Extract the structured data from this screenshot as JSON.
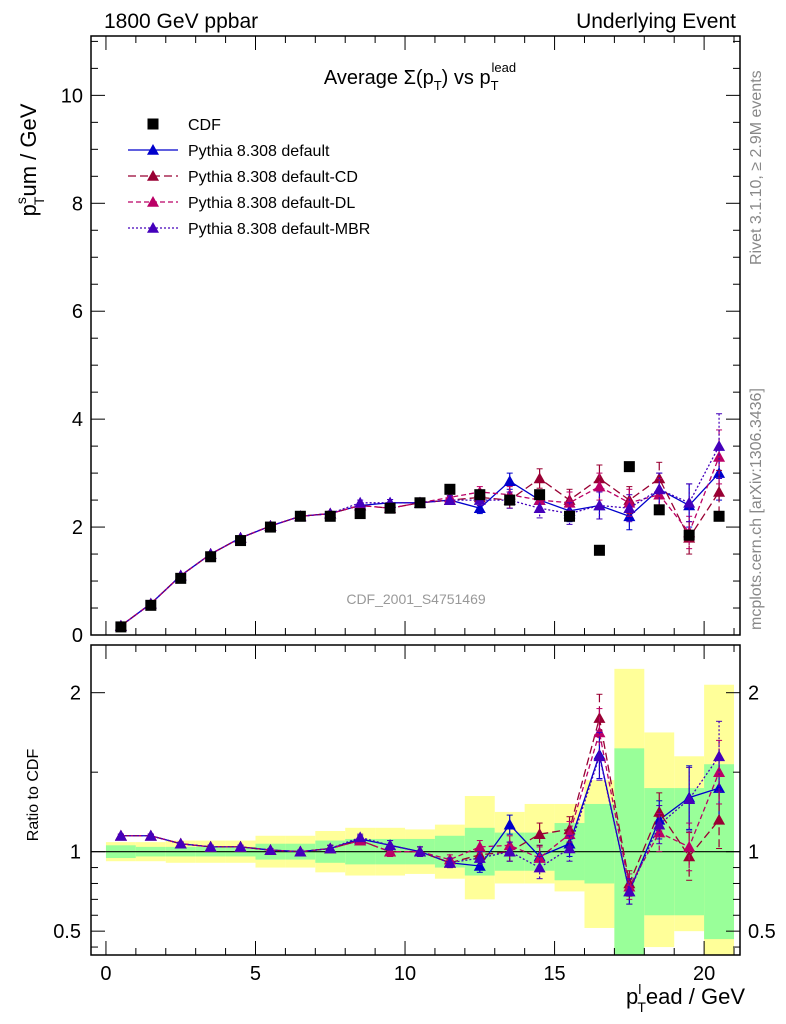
{
  "header": {
    "left": "1800 GeV ppbar",
    "right": "Underlying Event"
  },
  "side_labels": {
    "rivet": "Rivet 3.1.10, ≥ 2.9M events",
    "mcplots": "mcplots.cern.ch [arXiv:1306.3436]"
  },
  "watermark": "CDF_2001_S4751469",
  "colors": {
    "data": "#000000",
    "default": "#0000cc",
    "cd": "#990033",
    "dl": "#bb0066",
    "mbr": "#4400bb",
    "band_inner": "#99ff99",
    "band_outer": "#ffff99"
  },
  "chart_data": [
    {
      "type": "scatter",
      "title": "Average Σ(p_T) vs p_T^lead",
      "title_parts": {
        "main": "Average Σ(p",
        "sub1": "T",
        "mid": ") vs p",
        "sub2": "T",
        "sup": "lead"
      },
      "ylabel_parts": {
        "p": "p",
        "sup": "s",
        "sub": "T",
        "rest": "um / GeV"
      },
      "xlim": [
        -0.5,
        21.2
      ],
      "ylim": [
        0,
        11.1
      ],
      "yticks": [
        0,
        2,
        4,
        6,
        8,
        10
      ],
      "ytick_labels": [
        "0",
        "2",
        "4",
        "6",
        "8",
        "10"
      ],
      "x": [
        0.5,
        1.5,
        2.5,
        3.5,
        4.5,
        5.5,
        6.5,
        7.5,
        8.5,
        9.5,
        10.5,
        11.5,
        12.5,
        13.5,
        14.5,
        15.5,
        16.5,
        17.5,
        18.5,
        19.5,
        20.5
      ],
      "legend": [
        "CDF",
        "Pythia 8.308 default",
        "Pythia 8.308 default-CD",
        "Pythia 8.308 default-DL",
        "Pythia 8.308 default-MBR"
      ],
      "legend_position": "top-left",
      "series": [
        {
          "name": "CDF",
          "key": "data",
          "values": [
            0.15,
            0.55,
            1.05,
            1.45,
            1.75,
            2.0,
            2.2,
            2.2,
            2.25,
            2.35,
            2.45,
            2.7,
            2.6,
            2.5,
            2.6,
            2.2,
            1.57,
            3.12,
            2.32,
            1.85,
            2.2
          ]
        },
        {
          "name": "Pythia 8.308 default",
          "key": "default",
          "values": [
            0.17,
            0.58,
            1.1,
            1.5,
            1.8,
            2.02,
            2.2,
            2.25,
            2.4,
            2.45,
            2.45,
            2.5,
            2.35,
            2.85,
            2.5,
            2.3,
            2.4,
            2.2,
            2.7,
            2.4,
            3.0
          ],
          "errors": [
            0.01,
            0.01,
            0.02,
            0.02,
            0.02,
            0.03,
            0.03,
            0.04,
            0.05,
            0.06,
            0.07,
            0.08,
            0.1,
            0.15,
            0.18,
            0.2,
            0.25,
            0.25,
            0.3,
            0.4,
            0.5
          ]
        },
        {
          "name": "Pythia 8.308 default-CD",
          "key": "cd",
          "values": [
            0.17,
            0.58,
            1.1,
            1.5,
            1.8,
            2.02,
            2.2,
            2.25,
            2.4,
            2.35,
            2.45,
            2.5,
            2.55,
            2.5,
            2.9,
            2.5,
            2.9,
            2.5,
            2.9,
            1.8,
            2.65
          ],
          "errors": [
            0.01,
            0.01,
            0.02,
            0.02,
            0.02,
            0.03,
            0.03,
            0.04,
            0.05,
            0.06,
            0.07,
            0.08,
            0.1,
            0.15,
            0.18,
            0.2,
            0.25,
            0.25,
            0.3,
            0.3,
            0.4
          ]
        },
        {
          "name": "Pythia 8.308 default-DL",
          "key": "dl",
          "values": [
            0.17,
            0.58,
            1.1,
            1.5,
            1.8,
            2.02,
            2.2,
            2.25,
            2.4,
            2.35,
            2.45,
            2.55,
            2.65,
            2.6,
            2.5,
            2.45,
            2.75,
            2.45,
            2.6,
            1.9,
            3.3
          ],
          "errors": [
            0.01,
            0.01,
            0.02,
            0.02,
            0.02,
            0.03,
            0.03,
            0.04,
            0.05,
            0.06,
            0.07,
            0.08,
            0.1,
            0.15,
            0.18,
            0.2,
            0.25,
            0.25,
            0.3,
            0.3,
            0.5
          ]
        },
        {
          "name": "Pythia 8.308 default-MBR",
          "key": "mbr",
          "values": [
            0.17,
            0.58,
            1.1,
            1.5,
            1.8,
            2.02,
            2.2,
            2.25,
            2.45,
            2.45,
            2.45,
            2.5,
            2.5,
            2.5,
            2.35,
            2.25,
            2.4,
            2.35,
            2.7,
            2.45,
            3.5
          ],
          "errors": [
            0.01,
            0.01,
            0.02,
            0.02,
            0.02,
            0.03,
            0.03,
            0.04,
            0.05,
            0.06,
            0.07,
            0.08,
            0.1,
            0.15,
            0.18,
            0.2,
            0.25,
            0.25,
            0.3,
            0.35,
            0.6
          ]
        }
      ]
    },
    {
      "type": "scatter",
      "title": "",
      "ylabel": "Ratio to CDF",
      "xlabel_parts": {
        "p": "p",
        "sub": "T",
        "sup": "l",
        "rest": "ead / GeV"
      },
      "xlim": [
        -0.5,
        21.2
      ],
      "ylim": [
        0.35,
        2.3
      ],
      "yticks": [
        0.5,
        1,
        2
      ],
      "ytick_labels": [
        "0.5",
        "1",
        "2"
      ],
      "xticks": [
        0,
        5,
        10,
        15,
        20
      ],
      "xtick_labels": [
        "0",
        "5",
        "10",
        "15",
        "20"
      ],
      "x": [
        0.5,
        1.5,
        2.5,
        3.5,
        4.5,
        5.5,
        6.5,
        7.5,
        8.5,
        9.5,
        10.5,
        11.5,
        12.5,
        13.5,
        14.5,
        15.5,
        16.5,
        17.5,
        18.5,
        19.5,
        20.5
      ],
      "bands": {
        "inner": [
          [
            0.96,
            1.04
          ],
          [
            0.97,
            1.03
          ],
          [
            0.97,
            1.03
          ],
          [
            0.97,
            1.03
          ],
          [
            0.97,
            1.03
          ],
          [
            0.95,
            1.05
          ],
          [
            0.95,
            1.05
          ],
          [
            0.93,
            1.07
          ],
          [
            0.92,
            1.08
          ],
          [
            0.92,
            1.08
          ],
          [
            0.92,
            1.08
          ],
          [
            0.9,
            1.1
          ],
          [
            0.85,
            1.15
          ],
          [
            0.88,
            1.12
          ],
          [
            0.88,
            1.12
          ],
          [
            0.82,
            1.18
          ],
          [
            0.8,
            1.3
          ],
          [
            0.35,
            1.65
          ],
          [
            0.6,
            1.4
          ],
          [
            0.6,
            1.4
          ],
          [
            0.45,
            1.55
          ]
        ],
        "outer": [
          [
            0.94,
            1.06
          ],
          [
            0.94,
            1.06
          ],
          [
            0.93,
            1.07
          ],
          [
            0.93,
            1.07
          ],
          [
            0.93,
            1.07
          ],
          [
            0.9,
            1.1
          ],
          [
            0.9,
            1.1
          ],
          [
            0.87,
            1.13
          ],
          [
            0.85,
            1.15
          ],
          [
            0.85,
            1.15
          ],
          [
            0.86,
            1.14
          ],
          [
            0.83,
            1.17
          ],
          [
            0.7,
            1.35
          ],
          [
            0.8,
            1.25
          ],
          [
            0.8,
            1.3
          ],
          [
            0.75,
            1.3
          ],
          [
            0.52,
            1.45
          ],
          [
            0.35,
            2.15
          ],
          [
            0.4,
            1.75
          ],
          [
            0.5,
            1.6
          ],
          [
            0.35,
            2.05
          ]
        ]
      },
      "series": [
        {
          "name": "Pythia 8.308 default",
          "key": "default",
          "values": [
            1.1,
            1.1,
            1.05,
            1.03,
            1.03,
            1.01,
            1.0,
            1.02,
            1.08,
            1.04,
            1.0,
            0.93,
            0.91,
            1.17,
            0.97,
            1.05,
            1.61,
            0.75,
            1.2,
            1.34,
            1.4
          ],
          "errors": [
            0.01,
            0.01,
            0.01,
            0.01,
            0.01,
            0.01,
            0.01,
            0.02,
            0.02,
            0.03,
            0.03,
            0.03,
            0.04,
            0.06,
            0.07,
            0.08,
            0.15,
            0.08,
            0.12,
            0.2,
            0.2
          ]
        },
        {
          "name": "Pythia 8.308 default-CD",
          "key": "cd",
          "values": [
            1.1,
            1.1,
            1.05,
            1.03,
            1.03,
            1.01,
            1.0,
            1.02,
            1.07,
            1.0,
            1.0,
            0.93,
            0.98,
            1.0,
            1.11,
            1.14,
            1.84,
            0.8,
            1.25,
            0.97,
            1.2
          ],
          "errors": [
            0.01,
            0.01,
            0.01,
            0.01,
            0.01,
            0.01,
            0.01,
            0.02,
            0.02,
            0.03,
            0.03,
            0.03,
            0.04,
            0.06,
            0.07,
            0.08,
            0.15,
            0.08,
            0.12,
            0.15,
            0.18
          ]
        },
        {
          "name": "Pythia 8.308 default-DL",
          "key": "dl",
          "values": [
            1.1,
            1.1,
            1.05,
            1.03,
            1.03,
            1.01,
            1.0,
            1.02,
            1.07,
            1.0,
            1.0,
            0.95,
            1.03,
            1.04,
            0.96,
            1.11,
            1.75,
            0.78,
            1.12,
            1.03,
            1.5
          ],
          "errors": [
            0.01,
            0.01,
            0.01,
            0.01,
            0.01,
            0.01,
            0.01,
            0.02,
            0.02,
            0.03,
            0.03,
            0.03,
            0.04,
            0.06,
            0.07,
            0.08,
            0.15,
            0.08,
            0.12,
            0.15,
            0.2
          ]
        },
        {
          "name": "Pythia 8.308 default-MBR",
          "key": "mbr",
          "values": [
            1.1,
            1.1,
            1.05,
            1.03,
            1.03,
            1.01,
            1.0,
            1.02,
            1.09,
            1.04,
            1.0,
            0.93,
            0.96,
            1.0,
            0.9,
            1.02,
            1.6,
            0.75,
            1.17,
            1.33,
            1.6
          ],
          "errors": [
            0.01,
            0.01,
            0.01,
            0.01,
            0.01,
            0.01,
            0.01,
            0.02,
            0.02,
            0.03,
            0.03,
            0.03,
            0.04,
            0.06,
            0.07,
            0.08,
            0.15,
            0.08,
            0.12,
            0.2,
            0.22
          ]
        }
      ]
    }
  ]
}
